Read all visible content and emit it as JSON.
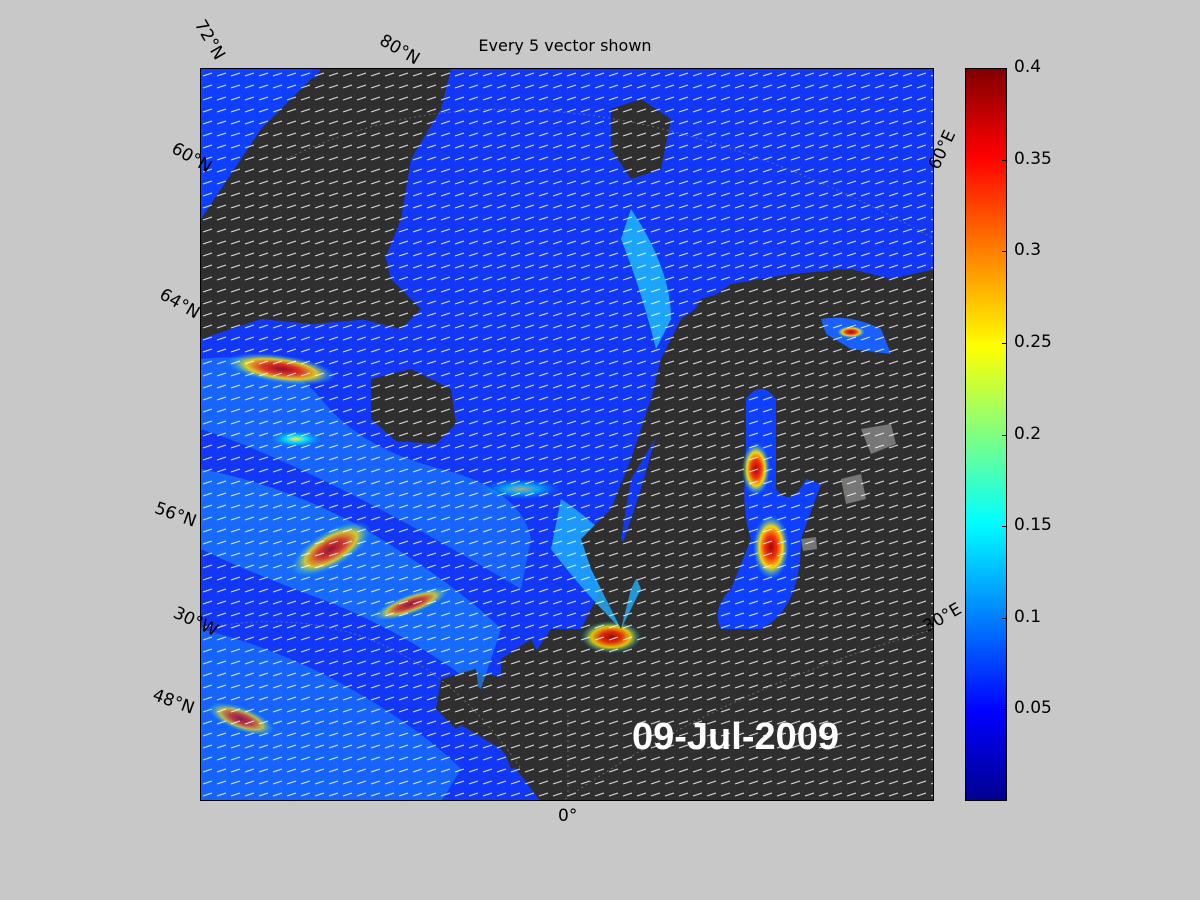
{
  "title": "Every 5 vector shown",
  "date": "09-Jul-2009",
  "lat_labels": [
    "72°N",
    "60°N",
    "64°N",
    "56°N",
    "30°W",
    "48°N"
  ],
  "lon_labels": [
    "80°N",
    "60°E",
    "30°E",
    "0°"
  ],
  "colorbar": {
    "ticks": [
      "0.4",
      "0.35",
      "0.3",
      "0.25",
      "0.2",
      "0.15",
      "0.1",
      "0.05"
    ],
    "tick_values": [
      0.4,
      0.35,
      0.3,
      0.25,
      0.2,
      0.15,
      0.1,
      0.05
    ],
    "min": 0,
    "max": 0.4,
    "colormap": "jet"
  },
  "colors": {
    "background": "#c8c8c8",
    "land": "#2f2f2f",
    "ocean_low": "#0022ee",
    "vector": "#ffffff"
  }
}
